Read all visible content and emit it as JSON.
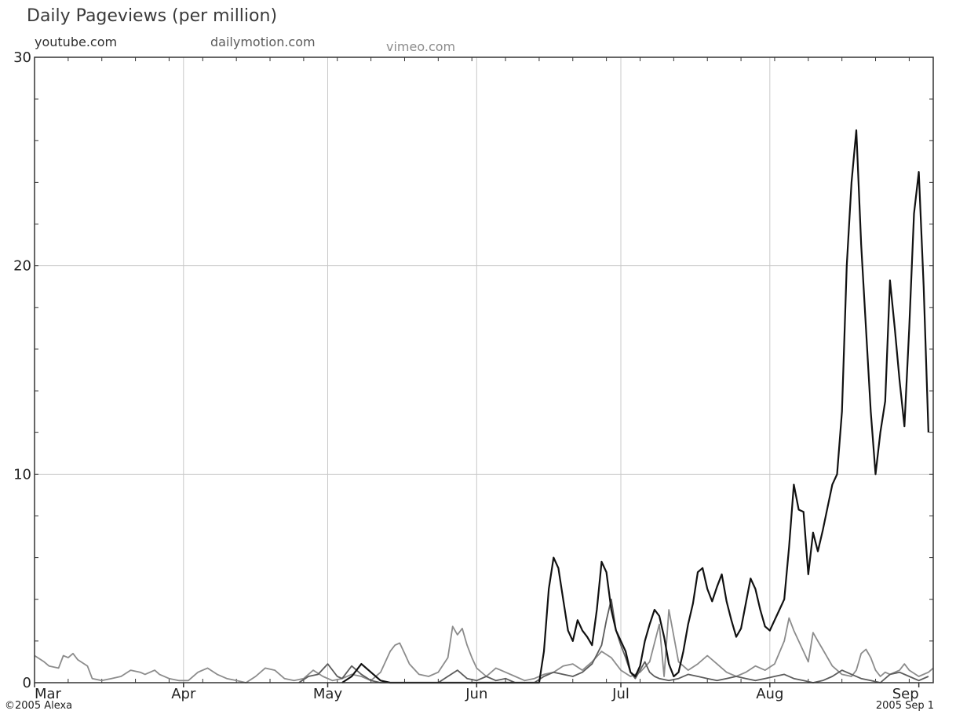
{
  "chart_data": {
    "type": "line",
    "title": "Daily Pageviews (per million)",
    "xlabel": "",
    "ylabel": "",
    "ylim": [
      0,
      30
    ],
    "y_ticks": [
      "0",
      "10",
      "20",
      "30"
    ],
    "x_ticks": [
      "Mar",
      "Apr",
      "May",
      "Jun",
      "Jul",
      "Aug",
      "Sep"
    ],
    "grid": true,
    "legend_position": "top-left",
    "series": [
      {
        "name": "youtube.com",
        "color": "#111111",
        "values": [
          [
            64,
            0
          ],
          [
            66,
            0.3
          ],
          [
            68,
            0.9
          ],
          [
            70,
            0.5
          ],
          [
            72,
            0.1
          ],
          [
            74,
            0
          ],
          [
            105,
            0
          ],
          [
            106,
            1.5
          ],
          [
            107,
            4.5
          ],
          [
            108,
            6.0
          ],
          [
            109,
            5.5
          ],
          [
            110,
            4.0
          ],
          [
            111,
            2.5
          ],
          [
            112,
            2.0
          ],
          [
            113,
            3.0
          ],
          [
            114,
            2.5
          ],
          [
            115,
            2.2
          ],
          [
            116,
            1.8
          ],
          [
            117,
            3.5
          ],
          [
            118,
            5.8
          ],
          [
            119,
            5.3
          ],
          [
            120,
            3.5
          ],
          [
            121,
            2.5
          ],
          [
            122,
            2.0
          ],
          [
            123,
            1.5
          ],
          [
            124,
            0.5
          ],
          [
            125,
            0.3
          ],
          [
            126,
            0.8
          ],
          [
            127,
            2.0
          ],
          [
            128,
            2.8
          ],
          [
            129,
            3.5
          ],
          [
            130,
            3.2
          ],
          [
            131,
            2.2
          ],
          [
            132,
            0.9
          ],
          [
            133,
            0.3
          ],
          [
            134,
            0.5
          ],
          [
            135,
            1.5
          ],
          [
            136,
            2.8
          ],
          [
            137,
            3.8
          ],
          [
            138,
            5.3
          ],
          [
            139,
            5.5
          ],
          [
            140,
            4.5
          ],
          [
            141,
            3.9
          ],
          [
            142,
            4.6
          ],
          [
            143,
            5.2
          ],
          [
            144,
            3.9
          ],
          [
            145,
            3.0
          ],
          [
            146,
            2.2
          ],
          [
            147,
            2.6
          ],
          [
            148,
            3.8
          ],
          [
            149,
            5.0
          ],
          [
            150,
            4.5
          ],
          [
            151,
            3.5
          ],
          [
            152,
            2.7
          ],
          [
            153,
            2.5
          ],
          [
            154,
            3.0
          ],
          [
            155,
            3.5
          ],
          [
            156,
            4.0
          ],
          [
            157,
            6.5
          ],
          [
            158,
            9.5
          ],
          [
            159,
            8.3
          ],
          [
            160,
            8.2
          ],
          [
            161,
            5.2
          ],
          [
            162,
            7.2
          ],
          [
            163,
            6.3
          ],
          [
            164,
            7.3
          ],
          [
            165,
            8.4
          ],
          [
            166,
            9.5
          ],
          [
            167,
            10
          ],
          [
            168,
            13
          ],
          [
            169,
            20
          ],
          [
            170,
            24
          ],
          [
            171,
            26.5
          ],
          [
            172,
            21
          ],
          [
            173,
            17
          ],
          [
            174,
            13
          ],
          [
            175,
            10
          ],
          [
            176,
            12
          ],
          [
            177,
            13.5
          ],
          [
            178,
            19.3
          ],
          [
            179,
            17
          ],
          [
            180,
            14.5
          ],
          [
            181,
            12.3
          ],
          [
            182,
            17
          ],
          [
            183,
            22.5
          ],
          [
            184,
            24.5
          ],
          [
            185,
            19
          ],
          [
            186,
            12
          ]
        ]
      },
      {
        "name": "dailymotion.com",
        "color": "#5c5c5c",
        "values": [
          [
            55,
            0
          ],
          [
            57,
            0.3
          ],
          [
            59,
            0.4
          ],
          [
            61,
            0.9
          ],
          [
            63,
            0.3
          ],
          [
            64,
            0.2
          ],
          [
            66,
            0.8
          ],
          [
            68,
            0.4
          ],
          [
            70,
            0.1
          ],
          [
            72,
            0
          ],
          [
            84,
            0
          ],
          [
            86,
            0.3
          ],
          [
            88,
            0.6
          ],
          [
            90,
            0.2
          ],
          [
            92,
            0.1
          ],
          [
            94,
            0.3
          ],
          [
            96,
            0.1
          ],
          [
            98,
            0.2
          ],
          [
            100,
            0
          ],
          [
            104,
            0
          ],
          [
            106,
            0.3
          ],
          [
            108,
            0.5
          ],
          [
            110,
            0.4
          ],
          [
            112,
            0.3
          ],
          [
            114,
            0.5
          ],
          [
            116,
            0.9
          ],
          [
            118,
            1.8
          ],
          [
            119,
            3.0
          ],
          [
            120,
            4.0
          ],
          [
            121,
            2.5
          ],
          [
            122,
            1.8
          ],
          [
            123,
            1.2
          ],
          [
            124,
            0.5
          ],
          [
            125,
            0.2
          ],
          [
            126,
            0.6
          ],
          [
            127,
            1.0
          ],
          [
            128,
            0.5
          ],
          [
            129,
            0.3
          ],
          [
            130,
            0.2
          ],
          [
            132,
            0.1
          ],
          [
            134,
            0.2
          ],
          [
            136,
            0.4
          ],
          [
            138,
            0.3
          ],
          [
            140,
            0.2
          ],
          [
            142,
            0.1
          ],
          [
            144,
            0.2
          ],
          [
            146,
            0.3
          ],
          [
            148,
            0.2
          ],
          [
            150,
            0.1
          ],
          [
            152,
            0.2
          ],
          [
            154,
            0.3
          ],
          [
            156,
            0.4
          ],
          [
            158,
            0.2
          ],
          [
            160,
            0.1
          ],
          [
            162,
            0
          ],
          [
            164,
            0.1
          ],
          [
            166,
            0.3
          ],
          [
            168,
            0.6
          ],
          [
            170,
            0.4
          ],
          [
            172,
            0.2
          ],
          [
            174,
            0.1
          ],
          [
            176,
            0
          ],
          [
            178,
            0.4
          ],
          [
            180,
            0.5
          ],
          [
            182,
            0.3
          ],
          [
            184,
            0.1
          ],
          [
            186,
            0.3
          ]
        ]
      },
      {
        "name": "vimeo.com",
        "color": "#8c8c8c",
        "values": [
          [
            0,
            1.3
          ],
          [
            2,
            1.0
          ],
          [
            3,
            0.8
          ],
          [
            5,
            0.7
          ],
          [
            6,
            1.3
          ],
          [
            7,
            1.2
          ],
          [
            8,
            1.4
          ],
          [
            9,
            1.1
          ],
          [
            11,
            0.8
          ],
          [
            12,
            0.2
          ],
          [
            14,
            0.1
          ],
          [
            16,
            0.2
          ],
          [
            18,
            0.3
          ],
          [
            20,
            0.6
          ],
          [
            22,
            0.5
          ],
          [
            23,
            0.4
          ],
          [
            25,
            0.6
          ],
          [
            26,
            0.4
          ],
          [
            28,
            0.2
          ],
          [
            30,
            0.1
          ],
          [
            32,
            0.1
          ],
          [
            34,
            0.5
          ],
          [
            36,
            0.7
          ],
          [
            38,
            0.4
          ],
          [
            40,
            0.2
          ],
          [
            42,
            0.1
          ],
          [
            44,
            0
          ],
          [
            46,
            0.3
          ],
          [
            48,
            0.7
          ],
          [
            50,
            0.6
          ],
          [
            52,
            0.2
          ],
          [
            54,
            0.1
          ],
          [
            56,
            0.2
          ],
          [
            58,
            0.6
          ],
          [
            60,
            0.3
          ],
          [
            62,
            0.1
          ],
          [
            64,
            0.2
          ],
          [
            66,
            0.4
          ],
          [
            68,
            0.3
          ],
          [
            70,
            0.1
          ],
          [
            72,
            0.5
          ],
          [
            74,
            1.5
          ],
          [
            75,
            1.8
          ],
          [
            76,
            1.9
          ],
          [
            77,
            1.4
          ],
          [
            78,
            0.9
          ],
          [
            80,
            0.4
          ],
          [
            82,
            0.3
          ],
          [
            84,
            0.5
          ],
          [
            86,
            1.2
          ],
          [
            87,
            2.7
          ],
          [
            88,
            2.3
          ],
          [
            89,
            2.6
          ],
          [
            90,
            1.8
          ],
          [
            91,
            1.2
          ],
          [
            92,
            0.7
          ],
          [
            94,
            0.3
          ],
          [
            96,
            0.7
          ],
          [
            98,
            0.5
          ],
          [
            100,
            0.3
          ],
          [
            102,
            0.1
          ],
          [
            104,
            0.2
          ],
          [
            106,
            0.4
          ],
          [
            108,
            0.5
          ],
          [
            110,
            0.8
          ],
          [
            112,
            0.9
          ],
          [
            114,
            0.6
          ],
          [
            116,
            1.0
          ],
          [
            118,
            1.5
          ],
          [
            120,
            1.2
          ],
          [
            122,
            0.6
          ],
          [
            124,
            0.3
          ],
          [
            126,
            0.5
          ],
          [
            128,
            1.0
          ],
          [
            130,
            2.8
          ],
          [
            131,
            0.3
          ],
          [
            132,
            3.5
          ],
          [
            134,
            1.0
          ],
          [
            136,
            0.6
          ],
          [
            138,
            0.9
          ],
          [
            140,
            1.3
          ],
          [
            142,
            0.9
          ],
          [
            144,
            0.5
          ],
          [
            146,
            0.3
          ],
          [
            148,
            0.5
          ],
          [
            150,
            0.8
          ],
          [
            152,
            0.6
          ],
          [
            154,
            0.9
          ],
          [
            156,
            2.0
          ],
          [
            157,
            3.1
          ],
          [
            158,
            2.5
          ],
          [
            160,
            1.5
          ],
          [
            161,
            1.0
          ],
          [
            162,
            2.4
          ],
          [
            163,
            2.0
          ],
          [
            164,
            1.6
          ],
          [
            166,
            0.8
          ],
          [
            168,
            0.4
          ],
          [
            170,
            0.3
          ],
          [
            171,
            0.6
          ],
          [
            172,
            1.4
          ],
          [
            173,
            1.6
          ],
          [
            174,
            1.2
          ],
          [
            175,
            0.6
          ],
          [
            176,
            0.3
          ],
          [
            177,
            0.5
          ],
          [
            178,
            0.4
          ],
          [
            180,
            0.6
          ],
          [
            181,
            0.9
          ],
          [
            182,
            0.6
          ],
          [
            184,
            0.3
          ],
          [
            186,
            0.5
          ],
          [
            187,
            0.7
          ]
        ]
      }
    ]
  },
  "footer": {
    "copyright": "©2005 Alexa",
    "snapshot_date": "2005 Sep 1"
  }
}
